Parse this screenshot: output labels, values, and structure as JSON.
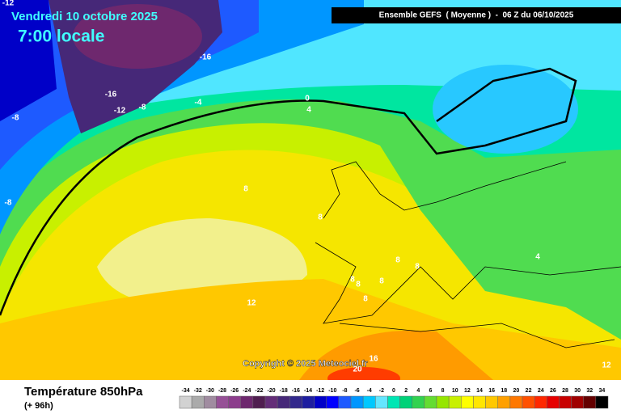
{
  "header": {
    "date": "Vendredi 10 octobre 2025",
    "time": "7:00 locale",
    "run": "Ensemble GEFS  ( Moyenne )  -  06 Z du 06/10/2025"
  },
  "map": {
    "contours": [
      -12,
      -16,
      -16,
      -12,
      -8,
      -4,
      -8,
      -8,
      0,
      4,
      8,
      8,
      8,
      8,
      8,
      8,
      8,
      8,
      12,
      4,
      16,
      20,
      12
    ],
    "copyright": "Copyright © 2025 Meteociel.fr"
  },
  "footer": {
    "title": "Température 850hPa",
    "subtitle": "(+ 96h)"
  },
  "scale": {
    "values": [
      -34,
      -32,
      -30,
      -28,
      -26,
      -24,
      -22,
      -20,
      -18,
      -16,
      -14,
      -12,
      -10,
      -8,
      -6,
      -4,
      -2,
      0,
      2,
      4,
      6,
      8,
      10,
      12,
      14,
      16,
      18,
      20,
      22,
      24,
      26,
      28,
      30,
      32,
      34
    ],
    "colors": [
      "#d2d2d2",
      "#aaaaaa",
      "#a08ca0",
      "#965096",
      "#8c3c8c",
      "#6e286e",
      "#501e50",
      "#642d78",
      "#462878",
      "#32288c",
      "#1e1ea0",
      "#0000c8",
      "#0000ff",
      "#1e5aff",
      "#0096ff",
      "#00c8ff",
      "#64e6ff",
      "#00e6b4",
      "#00d278",
      "#32d250",
      "#64dc32",
      "#96e600",
      "#c8f000",
      "#ffff00",
      "#ffe600",
      "#ffc800",
      "#ffa000",
      "#ff7800",
      "#ff5000",
      "#ff2800",
      "#e60000",
      "#c80000",
      "#a00000",
      "#640000",
      "#000000"
    ]
  }
}
